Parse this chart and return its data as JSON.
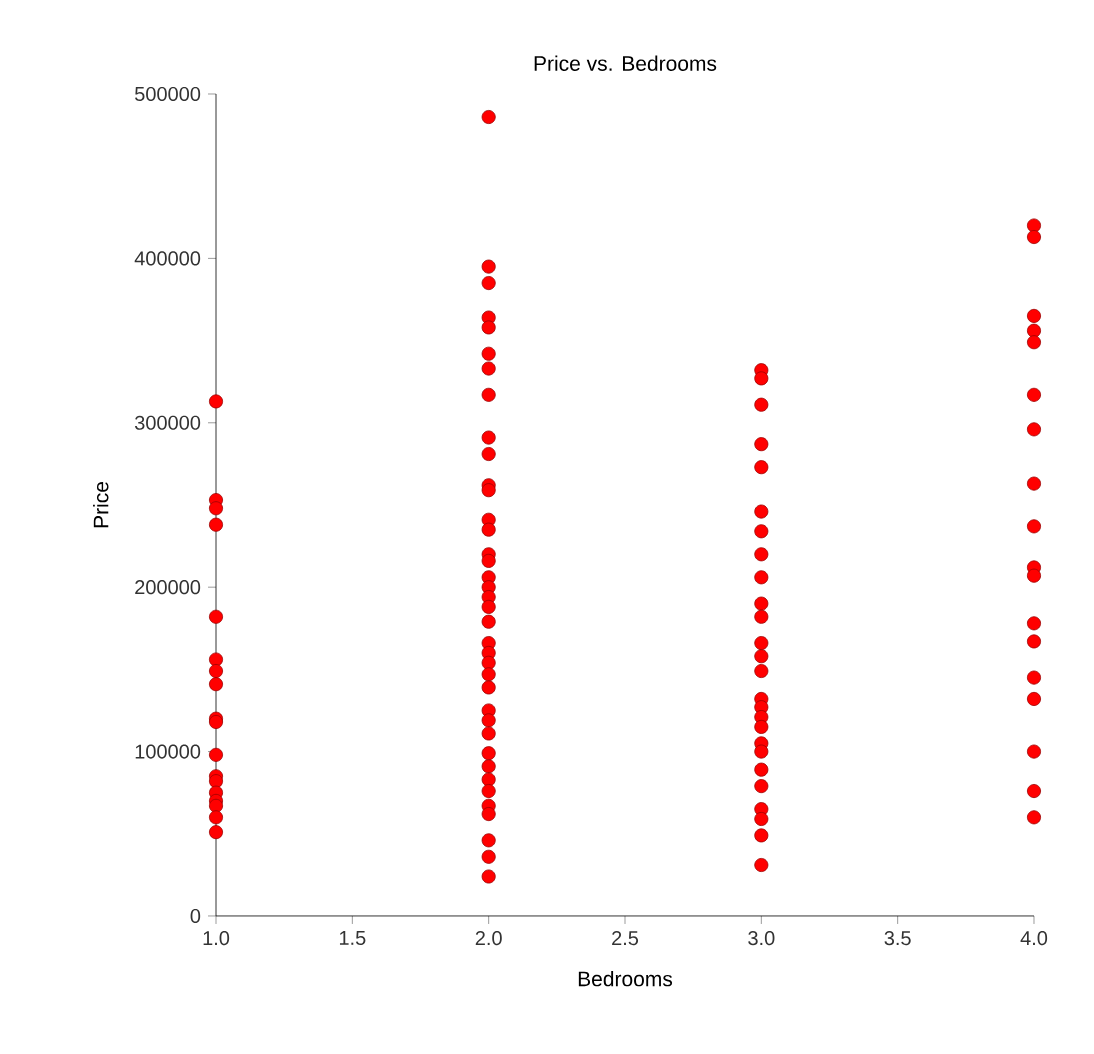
{
  "chart_data": {
    "type": "scatter",
    "title": "Price vs. Bedrooms",
    "xlabel": "Bedrooms",
    "ylabel": "Price",
    "xlim": [
      1,
      4
    ],
    "ylim": [
      0,
      500000
    ],
    "xticks": [
      {
        "value": 1,
        "label": "1.0"
      },
      {
        "value": 1.5,
        "label": "1.5"
      },
      {
        "value": 2,
        "label": "2.0"
      },
      {
        "value": 2.5,
        "label": "2.5"
      },
      {
        "value": 3,
        "label": "3.0"
      },
      {
        "value": 3.5,
        "label": "3.5"
      },
      {
        "value": 4,
        "label": "4.0"
      }
    ],
    "yticks": [
      0,
      100000,
      200000,
      300000,
      400000,
      500000
    ],
    "grid": false,
    "legend": false,
    "marker": "circle",
    "series": [
      {
        "color": "#ff0000",
        "x": [
          1,
          1,
          1,
          1,
          1,
          1,
          1,
          1,
          1,
          1,
          1,
          1,
          1,
          1,
          1,
          1,
          1,
          1,
          2,
          2,
          2,
          2,
          2,
          2,
          2,
          2,
          2,
          2,
          2,
          2,
          2,
          2,
          2,
          2,
          2,
          2,
          2,
          2,
          2,
          2,
          2,
          2,
          2,
          2,
          2,
          2,
          2,
          2,
          2,
          2,
          2,
          2,
          2,
          2,
          2,
          2,
          3,
          3,
          3,
          3,
          3,
          3,
          3,
          3,
          3,
          3,
          3,
          3,
          3,
          3,
          3,
          3,
          3,
          3,
          3,
          3,
          3,
          3,
          3,
          3,
          3,
          3,
          4,
          4,
          4,
          4,
          4,
          4,
          4,
          4,
          4,
          4,
          4,
          4,
          4,
          4,
          4,
          4,
          4,
          4
        ],
        "values": [
          313000,
          253000,
          248000,
          238000,
          182000,
          156000,
          149000,
          141000,
          120000,
          118000,
          98000,
          85000,
          82000,
          75000,
          70000,
          67000,
          60000,
          51000,
          486000,
          395000,
          385000,
          364000,
          358000,
          342000,
          333000,
          317000,
          291000,
          281000,
          262000,
          259000,
          241000,
          235000,
          220000,
          216000,
          206000,
          200000,
          194000,
          188000,
          179000,
          166000,
          160000,
          154000,
          147000,
          139000,
          125000,
          119000,
          111000,
          99000,
          91000,
          83000,
          76000,
          67000,
          62000,
          46000,
          36000,
          24000,
          332000,
          327000,
          311000,
          287000,
          273000,
          246000,
          234000,
          220000,
          206000,
          190000,
          182000,
          166000,
          158000,
          149000,
          132000,
          127000,
          121000,
          115000,
          105000,
          100000,
          89000,
          79000,
          65000,
          59000,
          49000,
          31000,
          420000,
          413000,
          365000,
          356000,
          349000,
          317000,
          296000,
          263000,
          237000,
          212000,
          207000,
          178000,
          167000,
          145000,
          132000,
          100000,
          76000,
          60000
        ]
      }
    ]
  }
}
